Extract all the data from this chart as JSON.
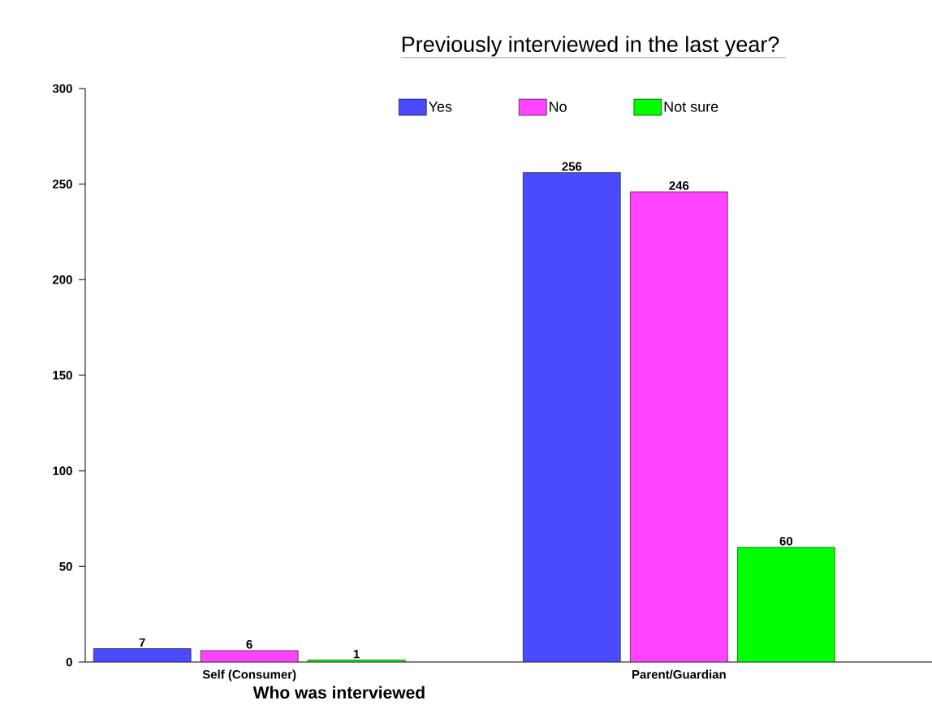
{
  "chart_data": {
    "type": "bar",
    "title": "Previously interviewed in the last year?",
    "xlabel": "Who was interviewed",
    "categories": [
      "Self (Consumer)",
      "Parent/Guardian"
    ],
    "series": [
      {
        "name": "Yes",
        "color": "#4a4aff",
        "values": [
          7,
          256
        ]
      },
      {
        "name": "No",
        "color": "#ff44ff",
        "values": [
          6,
          246
        ]
      },
      {
        "name": "Not sure",
        "color": "#00ff00",
        "values": [
          1,
          60
        ]
      }
    ],
    "ylim": [
      0,
      300
    ],
    "yticks": [
      0,
      50,
      100,
      150,
      200,
      250,
      300
    ],
    "data_labels": true,
    "legend": "top",
    "grid": false
  }
}
